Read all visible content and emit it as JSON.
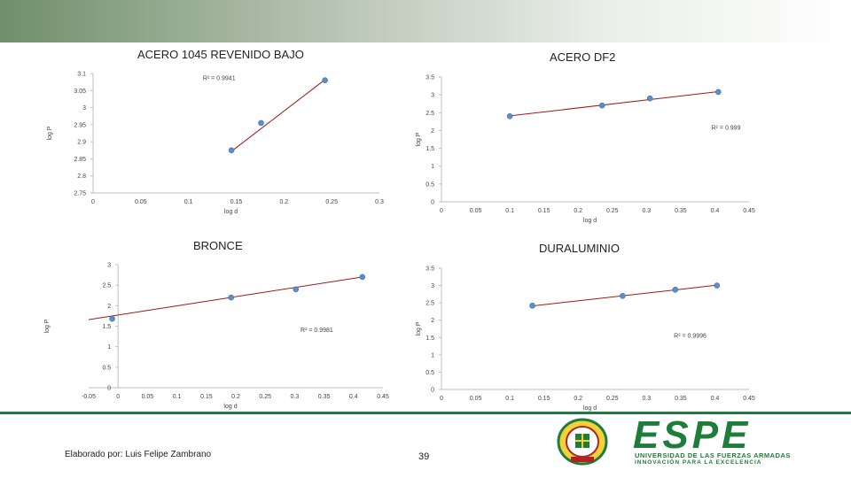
{
  "chart_data": [
    {
      "type": "scatter",
      "title": "ACERO 1045 REVENIDO BAJO",
      "xlabel": "log d",
      "ylabel": "log P",
      "xlim": [
        0,
        0.3
      ],
      "ylim": [
        2.75,
        3.1
      ],
      "xticks": [
        0,
        0.05,
        0.1,
        0.15,
        0.2,
        0.25,
        0.3
      ],
      "yticks": [
        2.75,
        2.8,
        2.85,
        2.9,
        2.95,
        3,
        3.05,
        3.1
      ],
      "xtick_labels": [
        "0",
        "0.05",
        "0.1",
        "0.15",
        "0.2",
        "0.25",
        "0.3"
      ],
      "ytick_labels": [
        "2.75",
        "2.8",
        "2.85",
        "2.9",
        "2.95",
        "3",
        "3.05",
        "3.1"
      ],
      "series": [
        {
          "x": [
            0.145,
            0.176,
            0.243
          ],
          "y": [
            2.875,
            2.955,
            3.08
          ]
        }
      ],
      "trendline": {
        "x": [
          0.145,
          0.243
        ],
        "y": [
          2.872,
          3.082
        ]
      },
      "r2_label": "R² = 0.9941",
      "r2_anchor": [
        0.115,
        3.08
      ]
    },
    {
      "type": "scatter",
      "title": "ACERO DF2",
      "xlabel": "log d",
      "ylabel": "log P",
      "xlim": [
        0,
        0.45
      ],
      "ylim": [
        0,
        3.5
      ],
      "xticks": [
        0,
        0.05,
        0.1,
        0.15,
        0.2,
        0.25,
        0.3,
        0.35,
        0.4,
        0.45
      ],
      "yticks": [
        0,
        0.5,
        1,
        1.5,
        2,
        2.5,
        3,
        3.5
      ],
      "xtick_labels": [
        "0",
        "0.05",
        "0.1",
        "0.15",
        "0.2",
        "0.25",
        "0.3",
        "0.35",
        "0.4",
        "0.45"
      ],
      "ytick_labels": [
        "0",
        "0.5",
        "1",
        "1.5",
        "2",
        "2.5",
        "3",
        "3.5"
      ],
      "series": [
        {
          "x": [
            0.1,
            0.235,
            0.305,
            0.405
          ],
          "y": [
            2.4,
            2.7,
            2.9,
            3.08
          ]
        }
      ],
      "trendline": {
        "x": [
          0.1,
          0.405
        ],
        "y": [
          2.41,
          3.09
        ]
      },
      "r2_label": "R² = 0.999",
      "r2_anchor": [
        0.395,
        2.02
      ]
    },
    {
      "type": "scatter",
      "title": "BRONCE",
      "xlabel": "log d",
      "ylabel": "log P",
      "xlim": [
        -0.05,
        0.45
      ],
      "ylim": [
        0,
        3
      ],
      "xticks": [
        -0.05,
        0,
        0.05,
        0.1,
        0.15,
        0.2,
        0.25,
        0.3,
        0.35,
        0.4,
        0.45
      ],
      "yticks": [
        0,
        0.5,
        1,
        1.5,
        2,
        2.5,
        3
      ],
      "xtick_labels": [
        "-0.05",
        "0",
        "0.05",
        "0.1",
        "0.15",
        "0.2",
        "0.25",
        "0.3",
        "0.35",
        "0.4",
        "0.45"
      ],
      "ytick_labels": [
        "0",
        "0.5",
        "1",
        "1.5",
        "2",
        "2.5",
        "3"
      ],
      "series": [
        {
          "x": [
            -0.01,
            0.192,
            0.302,
            0.415
          ],
          "y": [
            1.68,
            2.2,
            2.4,
            2.7
          ]
        }
      ],
      "trendline": {
        "x": [
          -0.05,
          0.415
        ],
        "y": [
          1.66,
          2.7
        ]
      },
      "r2_label": "R² = 0.9981",
      "r2_anchor": [
        0.31,
        1.36
      ]
    },
    {
      "type": "scatter",
      "title": "DURALUMINIO",
      "xlabel": "log d",
      "ylabel": "log P",
      "xlim": [
        0,
        0.45
      ],
      "ylim": [
        0,
        3.5
      ],
      "xticks": [
        0,
        0.05,
        0.1,
        0.15,
        0.2,
        0.25,
        0.3,
        0.35,
        0.4,
        0.45
      ],
      "yticks": [
        0,
        0.5,
        1,
        1.5,
        2,
        2.5,
        3,
        3.5
      ],
      "xtick_labels": [
        "0",
        "0.05",
        "0.1",
        "0.15",
        "0.2",
        "0.25",
        "0.3",
        "0.35",
        "0.4",
        "0.45"
      ],
      "ytick_labels": [
        "0",
        "0.5",
        "1",
        "1.5",
        "2",
        "2.5",
        "3",
        "3.5"
      ],
      "series": [
        {
          "x": [
            0.133,
            0.265,
            0.342,
            0.403
          ],
          "y": [
            2.42,
            2.7,
            2.88,
            3.0
          ]
        }
      ],
      "trendline": {
        "x": [
          0.133,
          0.403
        ],
        "y": [
          2.41,
          3.01
        ]
      },
      "r2_label": "R² = 0.9996",
      "r2_anchor": [
        0.34,
        1.5
      ]
    }
  ],
  "colors": {
    "point": "#5b8fc9",
    "trendline": "#a31515",
    "axis": "#bfbfbf",
    "brand": "#1e7d3a"
  },
  "footer": {
    "author": "Elaborado por: Luis Felipe Zambrano",
    "page": "39"
  },
  "logo": {
    "brand": "ESPE",
    "line1": "UNIVERSIDAD DE LAS FUERZAS ARMADAS",
    "line2": "INNOVACIÓN PARA LA EXCELENCIA",
    "seal_icon": "university-seal-icon"
  }
}
